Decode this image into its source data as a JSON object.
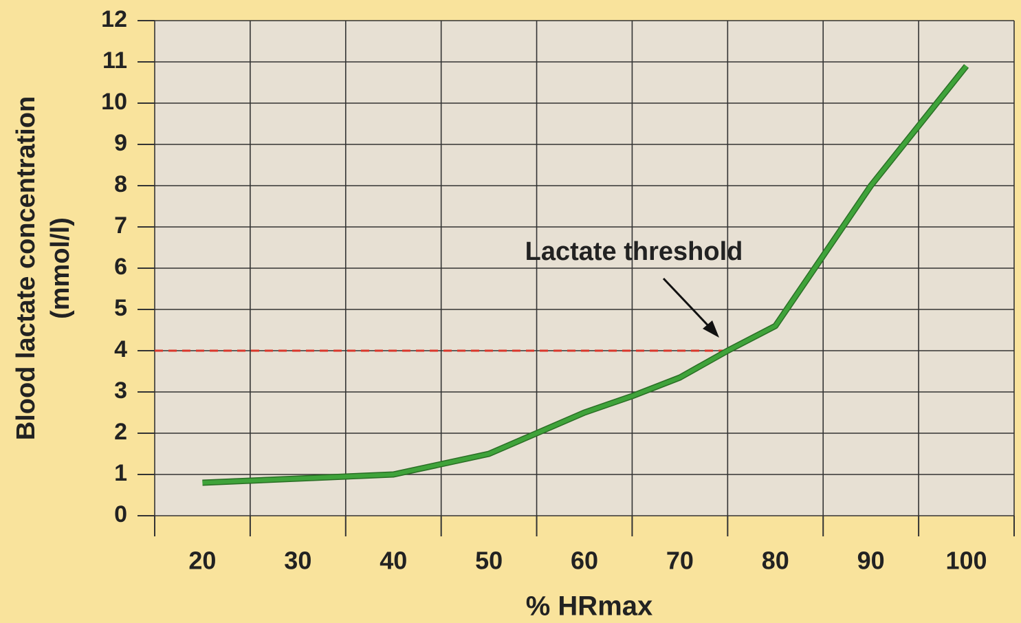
{
  "chart_data": {
    "type": "line",
    "y_label": [
      "Blood lactate concentration",
      "(mmol/l)"
    ],
    "x_label": "% HRmax",
    "x": [
      20,
      40,
      50,
      55,
      60,
      65,
      70,
      75,
      80,
      90,
      100
    ],
    "series": [
      {
        "color": "#3fa33a",
        "values": [
          0.8,
          1.0,
          1.5,
          2.0,
          2.5,
          2.9,
          3.35,
          4.0,
          4.6,
          8.0,
          10.9
        ]
      }
    ],
    "xlim": [
      15,
      105
    ],
    "xticks": [
      20,
      30,
      40,
      50,
      60,
      70,
      80,
      90,
      100
    ],
    "xgrid": [
      15,
      25,
      35,
      45,
      55,
      65,
      75,
      85,
      95,
      105
    ],
    "ylim": [
      0,
      12
    ],
    "yticks": [
      0,
      1,
      2,
      3,
      4,
      5,
      6,
      7,
      8,
      9,
      10,
      11,
      12
    ],
    "grid": true,
    "threshold": {
      "value": 4,
      "x_end": 75,
      "color": "#d9362b",
      "label": "Lactate threshold"
    }
  }
}
